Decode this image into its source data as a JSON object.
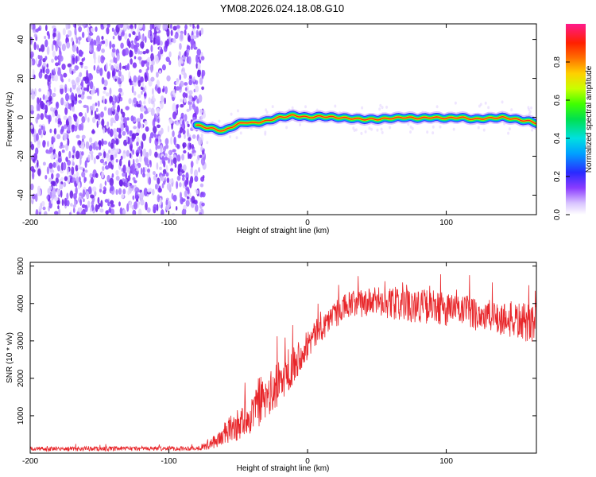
{
  "title": "YM08.2026.024.18.08.G10",
  "chart_data": [
    {
      "type": "heatmap",
      "title": "YM08.2026.024.18.08.G10",
      "xlabel": "Height of straight line (km)",
      "ylabel": "Frequency (Hz)",
      "xlim": [
        -200,
        165
      ],
      "ylim": [
        -50,
        48
      ],
      "xticks": [
        -200,
        -100,
        0,
        100
      ],
      "yticks": [
        -40,
        -20,
        0,
        20,
        40
      ],
      "noise_region_x": [
        -200,
        -80
      ],
      "ridge": {
        "x": [
          -80,
          -75,
          -70,
          -65,
          -60,
          -55,
          -50,
          -45,
          -40,
          -35,
          -30,
          -25,
          -20,
          -15,
          -10,
          -5,
          0,
          10,
          20,
          30,
          40,
          50,
          60,
          70,
          80,
          90,
          100,
          110,
          120,
          130,
          140,
          150,
          160,
          165
        ],
        "frequency": [
          -4,
          -5,
          -5.5,
          -6.5,
          -7,
          -5,
          -3.5,
          -2.5,
          -3,
          -2.5,
          -2,
          -1,
          0,
          0.5,
          1,
          0.5,
          0,
          0.5,
          0,
          -0.5,
          -1,
          -1,
          -0.5,
          0,
          -0.5,
          0,
          -0.5,
          0,
          -1,
          -0.5,
          0,
          -1,
          -2,
          -3
        ]
      },
      "colorbar": {
        "label": "Normalized spectral amplitude",
        "ticks": [
          0.0,
          0.2,
          0.4,
          0.6,
          0.8
        ],
        "range": [
          0,
          1
        ]
      }
    },
    {
      "type": "line",
      "xlabel": "Height of straight line (km)",
      "ylabel": "SNR (10 * v/v)",
      "xlim": [
        -200,
        165
      ],
      "ylim": [
        0,
        5100
      ],
      "xticks": [
        -200,
        -100,
        0,
        100
      ],
      "yticks": [
        1000,
        2000,
        3000,
        4000,
        5000
      ],
      "series": [
        {
          "name": "SNR",
          "color": "#e8262a",
          "x": [
            -200,
            -180,
            -160,
            -140,
            -120,
            -100,
            -80,
            -72,
            -65,
            -60,
            -55,
            -50,
            -45,
            -40,
            -35,
            -30,
            -25,
            -20,
            -15,
            -10,
            -5,
            0,
            5,
            10,
            15,
            20,
            25,
            30,
            40,
            50,
            60,
            70,
            80,
            90,
            100,
            110,
            120,
            130,
            140,
            150,
            160,
            165
          ],
          "values": [
            120,
            110,
            120,
            115,
            120,
            125,
            130,
            200,
            350,
            500,
            650,
            750,
            900,
            1050,
            1250,
            1450,
            1650,
            1900,
            2150,
            2400,
            2650,
            2900,
            3150,
            3350,
            3550,
            3700,
            3850,
            3950,
            4000,
            4050,
            4000,
            3950,
            3950,
            3900,
            3850,
            3800,
            3750,
            3650,
            3600,
            3550,
            3450,
            3600
          ],
          "noise_amplitude": [
            60,
            60,
            60,
            60,
            60,
            60,
            60,
            120,
            200,
            320,
            380,
            420,
            480,
            520,
            560,
            600,
            620,
            600,
            560,
            520,
            460,
            420,
            380,
            360,
            360,
            360,
            380,
            380,
            380,
            400,
            420,
            440,
            460,
            460,
            460,
            460,
            460,
            460,
            480,
            500,
            540,
            560
          ]
        }
      ]
    }
  ]
}
